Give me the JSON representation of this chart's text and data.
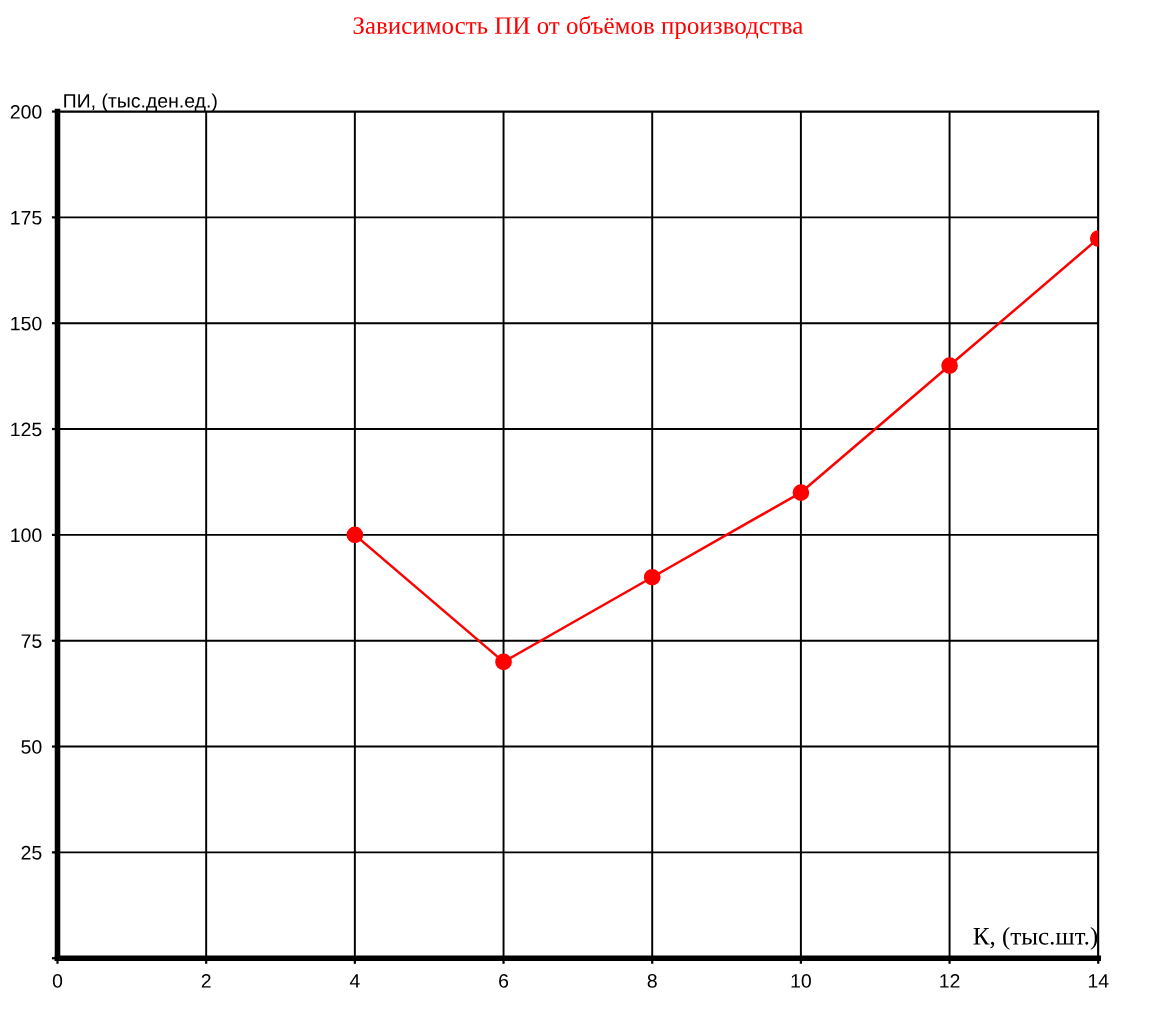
{
  "chart_data": {
    "type": "line",
    "title": "Зависимость ПИ от объёмов производства",
    "xlabel": "К, (тыс.шт.)",
    "ylabel": "ПИ, (тыс.ден.ед.)",
    "x": [
      4,
      6,
      8,
      10,
      12,
      14
    ],
    "series": [
      {
        "color": "#ff0000",
        "values": [
          100,
          70,
          90,
          110,
          140,
          170
        ]
      }
    ],
    "xlim": [
      0,
      14
    ],
    "xticks": [
      0,
      2,
      4,
      6,
      8,
      10,
      12,
      14
    ],
    "ylim": [
      0,
      200
    ],
    "yticks": [
      {
        "value": 0,
        "label": null
      },
      25,
      50,
      75,
      100,
      125,
      150,
      175,
      200
    ],
    "grid": true,
    "marker": "circle",
    "line_style": "solid"
  }
}
